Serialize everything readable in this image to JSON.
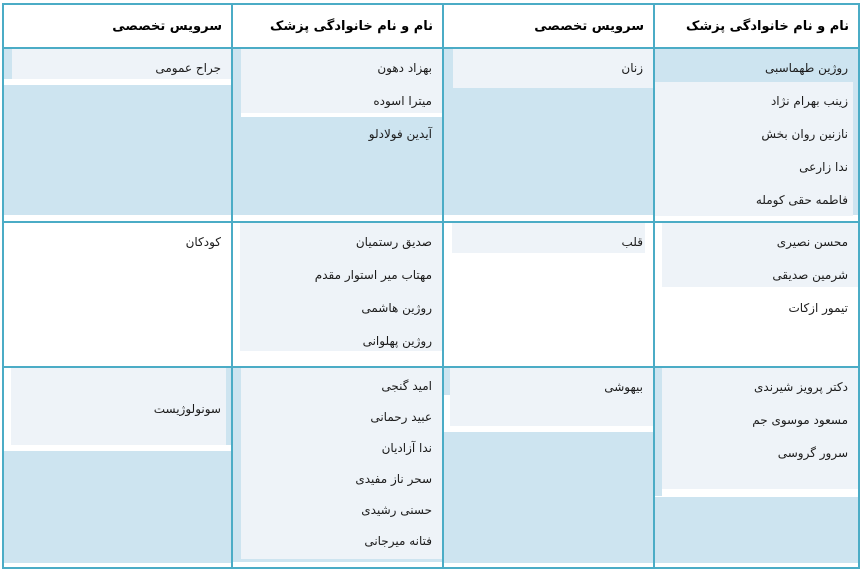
{
  "colors": {
    "border_teal": "#4BACC6",
    "stripe_blue": "#CDE4F0",
    "stripe_gray": "#EEF3F8",
    "header_text": "#000000",
    "body_text": "#1B1B1B"
  },
  "table": {
    "headers_rtl": [
      "نام و نام خانوادگی پزشک",
      "سرویس تخصصی",
      "نام و نام خانوادگی پزشک",
      "سرویس تخصصی"
    ],
    "groups": [
      {
        "right": {
          "specialty": "زنان",
          "doctors": [
            "روژین طهماسبی",
            "زینب بهرام نژاد",
            "نازنین روان بخش",
            "ندا زارعی",
            "فاطمه حقی کومله"
          ]
        },
        "left": {
          "specialty": "جراح عمومی",
          "doctors": [
            "بهزاد دهون",
            "میترا اسوده",
            "آیدین فولادلو"
          ]
        }
      },
      {
        "right": {
          "specialty": "قلب",
          "doctors": [
            "محسن نصیری",
            "شرمین صدیقی",
            "تیمور ازکات"
          ]
        },
        "left": {
          "specialty": "کودکان",
          "doctors": [
            "صدیق رستمیان",
            "مهتاب میر استوار مقدم",
            "روژین هاشمی",
            "روژین پهلوانی"
          ]
        }
      },
      {
        "right": {
          "specialty": "بیهوشی",
          "doctors": [
            "دکتر پرویز شیرندی",
            "مسعود موسوی جم",
            "سرور گروسی"
          ]
        },
        "left": {
          "specialty": "سونولوژیست",
          "doctors": [
            "امید گنجی",
            "عبید رحمانی",
            "ندا آزادیان",
            "سحر ناز مفیدی",
            "حسنی رشیدی",
            "فتانه میرجانی"
          ]
        }
      }
    ]
  }
}
